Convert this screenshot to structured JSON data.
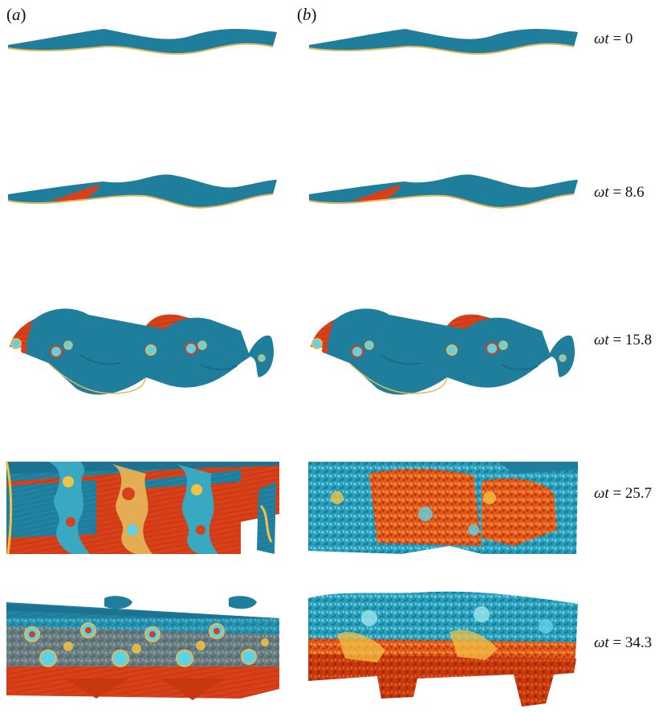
{
  "panels": [
    {
      "open": "(",
      "letter": "a",
      "close": ")"
    },
    {
      "open": "(",
      "letter": "b",
      "close": ")"
    }
  ],
  "times": [
    {
      "symbol": "ωt",
      "eq": " = ",
      "value": "0"
    },
    {
      "symbol": "ωt",
      "eq": " = ",
      "value": "8.6"
    },
    {
      "symbol": "ωt",
      "eq": " = ",
      "value": "15.8"
    },
    {
      "symbol": "ωt",
      "eq": " = ",
      "value": "25.7"
    },
    {
      "symbol": "ωt",
      "eq": " = ",
      "value": "34.3"
    }
  ],
  "colors": {
    "light_fluid": "#1f7e9c",
    "light_dark": "#15627c",
    "heavy_fluid": "#d8401a",
    "heavy_dark": "#a62a0e",
    "interface": "#e5b85a",
    "mixing_cyan": "#5fd3e6",
    "mixing_yellow": "#f2c244"
  }
}
